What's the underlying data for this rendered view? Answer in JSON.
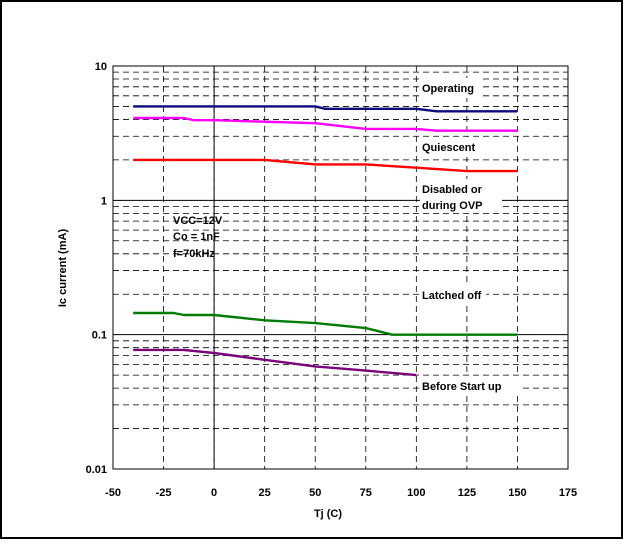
{
  "chart_data": {
    "type": "line",
    "title": "",
    "xlabel": "Tj (C)",
    "ylabel": "Ic current (mA)",
    "xlim": [
      -50,
      175
    ],
    "ylim": [
      0.01,
      10
    ],
    "yscale": "log",
    "grid": true,
    "x_ticks": [
      "-50",
      "-25",
      "0",
      "25",
      "50",
      "75",
      "100",
      "125",
      "150",
      "175"
    ],
    "y_ticks": [
      "10",
      "1",
      "0.1",
      "0.01"
    ],
    "series": [
      {
        "name": "Operating",
        "color": "#0a0a7a",
        "points": [
          [
            -40,
            5
          ],
          [
            50,
            5
          ],
          [
            55,
            4.8
          ],
          [
            100,
            4.8
          ],
          [
            110,
            4.6
          ],
          [
            150,
            4.6
          ]
        ]
      },
      {
        "name": "Quiescent",
        "color": "#ff00ff",
        "points": [
          [
            -40,
            4.1
          ],
          [
            -15,
            4.1
          ],
          [
            -10,
            3.95
          ],
          [
            0,
            3.95
          ],
          [
            50,
            3.75
          ],
          [
            75,
            3.4
          ],
          [
            100,
            3.4
          ],
          [
            110,
            3.3
          ],
          [
            150,
            3.3
          ]
        ]
      },
      {
        "name": "Disabled or during OVP",
        "color": "#ff0000",
        "points": [
          [
            -40,
            2.0
          ],
          [
            25,
            2.0
          ],
          [
            50,
            1.85
          ],
          [
            75,
            1.85
          ],
          [
            100,
            1.75
          ],
          [
            125,
            1.65
          ],
          [
            150,
            1.65
          ]
        ]
      },
      {
        "name": "Latched off",
        "color": "#007a00",
        "points": [
          [
            -40,
            0.145
          ],
          [
            -20,
            0.145
          ],
          [
            -15,
            0.14
          ],
          [
            0,
            0.14
          ],
          [
            25,
            0.128
          ],
          [
            50,
            0.122
          ],
          [
            75,
            0.112
          ],
          [
            88,
            0.1
          ],
          [
            150,
            0.1
          ]
        ]
      },
      {
        "name": "Before Start up",
        "color": "#7a007a",
        "points": [
          [
            -40,
            0.077
          ],
          [
            -15,
            0.077
          ],
          [
            0,
            0.073
          ],
          [
            25,
            0.065
          ],
          [
            50,
            0.058
          ],
          [
            75,
            0.054
          ],
          [
            100,
            0.05
          ]
        ]
      }
    ],
    "annotations": {
      "conditions": [
        "VCC=12V",
        "Co = 1nF",
        "f=70kHz"
      ],
      "operating": "Operating",
      "quiescent": "Quiescent",
      "disabled_line1": "Disabled or",
      "disabled_line2": "during OVP",
      "latched": "Latched off",
      "before": "Before Start up"
    }
  }
}
